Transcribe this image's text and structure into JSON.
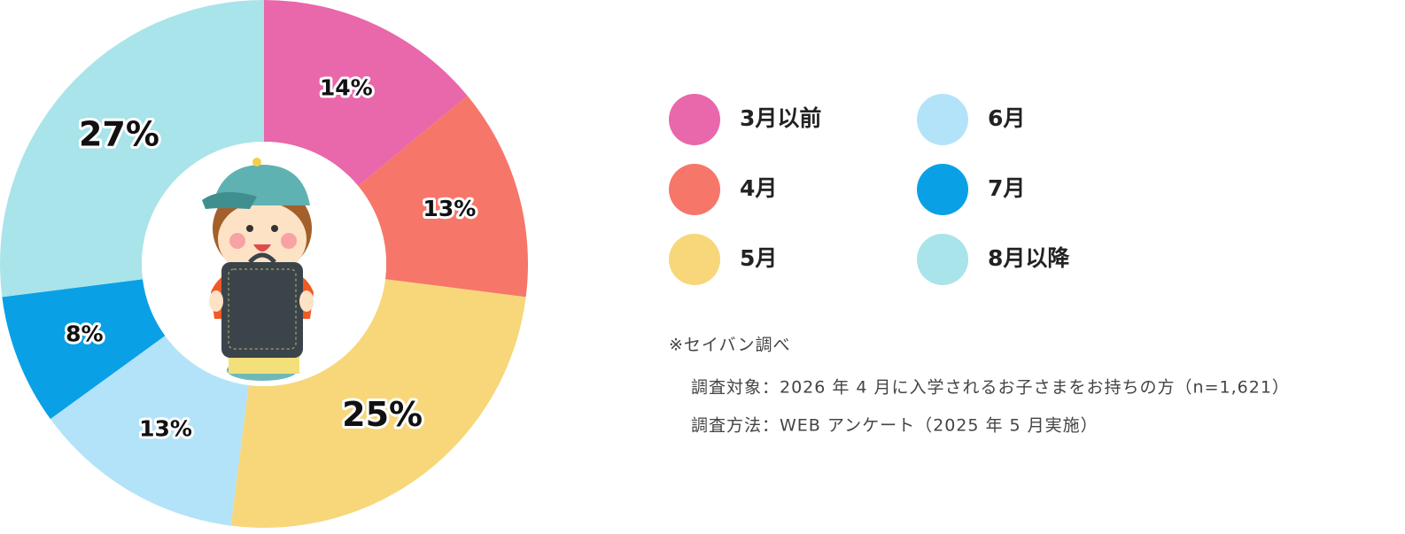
{
  "chart_data": {
    "type": "donut",
    "categories": [
      "3月以前",
      "4月",
      "5月",
      "6月",
      "7月",
      "8月以降"
    ],
    "values": [
      14,
      13,
      25,
      13,
      8,
      27
    ],
    "value_labels": [
      "14%",
      "13%",
      "25%",
      "13%",
      "8%",
      "27%"
    ],
    "colors": [
      "#e967ab",
      "#f7766a",
      "#f7d77a",
      "#b3e3f8",
      "#0aa0e6",
      "#a8e4ea"
    ],
    "notes": [
      "※セイバン調べ",
      "調査対象：2026 年 4 月に入学されるお子さまをお持ちの方（n=1,621）",
      "調査方法：WEB アンケート（2025 年 5 月実施）"
    ]
  }
}
